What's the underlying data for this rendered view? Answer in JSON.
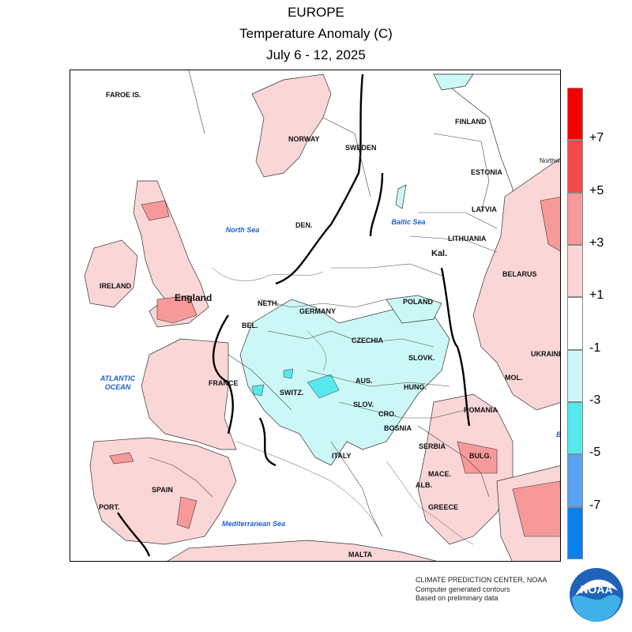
{
  "header": {
    "region": "EUROPE",
    "metric": "Temperature Anomaly (C)",
    "period": "July 6 - 12, 2025"
  },
  "map": {
    "countries": [
      "FAROE IS.",
      "NORWAY",
      "SWEDEN",
      "FINLAND",
      "ESTONIA",
      "Northw Distri",
      "LATVIA",
      "LITHUANIA",
      "DEN.",
      "Kal.",
      "BELARUS",
      "IRELAND",
      "England",
      "NETH.",
      "BEL.",
      "GERMANY",
      "POLAND",
      "CZECHIA",
      "SLOVK.",
      "UKRAINE",
      "FRANCE",
      "SWITZ.",
      "AUS.",
      "HUNG.",
      "MOL.",
      "SLOV.",
      "CRO.",
      "ROMANIA",
      "BOSNIA",
      "SERBIA",
      "BULG.",
      "MACE.",
      "ALB.",
      "ITALY",
      "SPAIN",
      "PORT.",
      "GREECE",
      "MALTA",
      "B"
    ],
    "seas": [
      "North Sea",
      "Baltic Sea",
      "ATLANTIC OCEAN",
      "Mediterranean Sea"
    ]
  },
  "legend": {
    "colors": [
      "#f50000",
      "#f64a4a",
      "#f79999",
      "#fad6d6",
      "#ffffff",
      "#ccf7f7",
      "#55e8ec",
      "#5aa2f4",
      "#0a7ff0"
    ],
    "labels": [
      "+7",
      "+5",
      "+3",
      "+1",
      "-1",
      "-3",
      "-5",
      "-7"
    ]
  },
  "credits": {
    "line1": "CLIMATE PREDICTION CENTER, NOAA",
    "line2": "Computer generated contours",
    "line3": "Based on preliminary data"
  },
  "logo": {
    "text": "NOAA",
    "icon": "noaa-logo-icon"
  }
}
